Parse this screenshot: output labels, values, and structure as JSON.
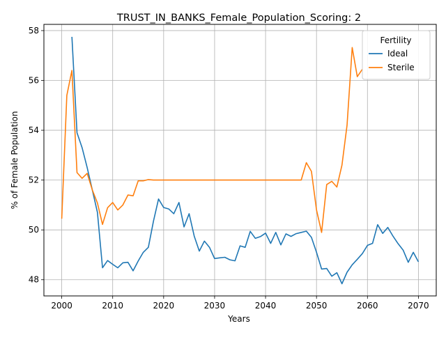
{
  "chart_data": {
    "type": "line",
    "title": "TRUST_IN_BANKS_Female_Population_Scoring: 2",
    "xlabel": "Years",
    "ylabel": "% of Female Population",
    "xlim": [
      1996.5,
      2073.5
    ],
    "ylim": [
      47.35,
      58.25
    ],
    "xticks": [
      2000,
      2010,
      2020,
      2030,
      2040,
      2050,
      2060,
      2070
    ],
    "yticks": [
      48,
      50,
      52,
      54,
      56,
      58
    ],
    "grid": true,
    "legend": {
      "title": "Fertility",
      "placement": "top-right"
    },
    "series": [
      {
        "name": "Ideal",
        "color": "#1f77b4",
        "x": [
          2002,
          2003,
          2004,
          2005,
          2006,
          2007,
          2008,
          2009,
          2010,
          2011,
          2012,
          2013,
          2014,
          2015,
          2016,
          2017,
          2018,
          2019,
          2020,
          2021,
          2022,
          2023,
          2024,
          2025,
          2026,
          2027,
          2028,
          2029,
          2030,
          2031,
          2032,
          2033,
          2034,
          2035,
          2036,
          2037,
          2038,
          2039,
          2040,
          2041,
          2042,
          2043,
          2044,
          2045,
          2046,
          2047,
          2048,
          2049,
          2050,
          2051,
          2052,
          2053,
          2054,
          2055,
          2056,
          2057,
          2058,
          2059,
          2060,
          2061,
          2062,
          2063,
          2064,
          2065,
          2066,
          2067,
          2068,
          2069,
          2070
        ],
        "values": [
          57.75,
          53.9,
          53.3,
          52.5,
          51.6,
          50.7,
          48.48,
          48.77,
          48.62,
          48.48,
          48.68,
          48.7,
          48.36,
          48.75,
          49.1,
          49.3,
          50.35,
          51.24,
          50.9,
          50.84,
          50.65,
          51.1,
          50.12,
          50.65,
          49.75,
          49.15,
          49.55,
          49.3,
          48.85,
          48.88,
          48.9,
          48.8,
          48.76,
          49.36,
          49.3,
          49.94,
          49.66,
          49.73,
          49.87,
          49.46,
          49.9,
          49.4,
          49.84,
          49.74,
          49.85,
          49.9,
          49.95,
          49.7,
          49.1,
          48.43,
          48.45,
          48.14,
          48.28,
          47.84,
          48.3,
          48.6,
          48.82,
          49.05,
          49.38,
          49.46,
          50.21,
          49.86,
          50.1,
          49.75,
          49.45,
          49.19,
          48.7,
          49.1,
          48.72
        ]
      },
      {
        "name": "Sterile",
        "color": "#ff7f0e",
        "x": [
          2000,
          2001,
          2002,
          2003,
          2004,
          2005,
          2006,
          2007,
          2008,
          2009,
          2010,
          2011,
          2012,
          2013,
          2014,
          2015,
          2016,
          2017,
          2018,
          2020,
          2025,
          2030,
          2035,
          2040,
          2045,
          2047,
          2048,
          2049,
          2050,
          2051,
          2052,
          2053,
          2054,
          2055,
          2056,
          2057,
          2058,
          2059
        ],
        "values": [
          50.45,
          55.4,
          56.4,
          52.3,
          52.07,
          52.27,
          51.6,
          51.08,
          50.22,
          50.89,
          51.1,
          50.8,
          51.0,
          51.4,
          51.37,
          51.97,
          51.97,
          52.02,
          52.0,
          52.0,
          52.0,
          52.0,
          52.0,
          52.0,
          52.0,
          52.0,
          52.7,
          52.35,
          50.8,
          49.9,
          51.82,
          51.95,
          51.72,
          52.6,
          54.2,
          57.32,
          56.15,
          56.45
        ]
      }
    ]
  }
}
